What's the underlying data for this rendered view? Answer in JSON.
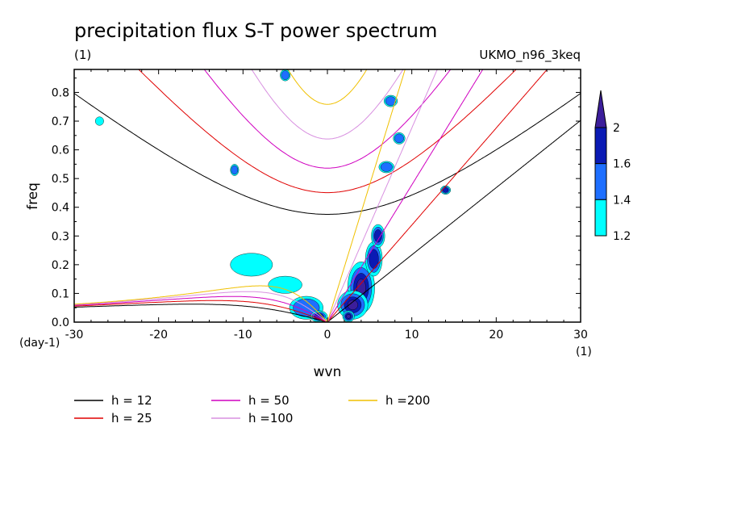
{
  "chart_data": {
    "type": "heatmap",
    "title": "precipitation flux S-T power spectrum",
    "subtitle_left": "(1)",
    "subtitle_right": "UKMO_n96_3keq",
    "xlabel": "wvn",
    "ylabel": "freq",
    "x_unit_label": "(1)",
    "y_unit_label": "(day-1)",
    "xlim": [
      -30,
      30
    ],
    "ylim": [
      0,
      0.88
    ],
    "x_ticks": [
      -30,
      -20,
      -10,
      0,
      10,
      20,
      30
    ],
    "x_tick_labels": [
      "-30",
      "-20",
      "-10",
      "0",
      "10",
      "20",
      "30"
    ],
    "y_ticks": [
      0,
      0.1,
      0.2,
      0.3,
      0.4,
      0.5,
      0.6,
      0.7,
      0.8
    ],
    "y_tick_labels": [
      "0.0",
      "0.1",
      "0.2",
      "0.3",
      "0.4",
      "0.5",
      "0.6",
      "0.7",
      "0.8"
    ],
    "grid": false,
    "colorbar": {
      "levels": [
        1.2,
        1.4,
        1.6,
        2
      ],
      "labels": [
        "1.2",
        "1.4",
        "1.6",
        "2"
      ],
      "colors": [
        "#00ffff",
        "#1e6fff",
        "#0a1ab4",
        "#3c1e9b"
      ]
    },
    "dispersion_curves": [
      {
        "name": "h = 12",
        "h": 12,
        "color": "#000000"
      },
      {
        "name": "h = 25",
        "h": 25,
        "color": "#e00000"
      },
      {
        "name": "h = 50",
        "h": 50,
        "color": "#d000c0"
      },
      {
        "name": "h =100",
        "h": 100,
        "color": "#d890e0"
      },
      {
        "name": "h =200",
        "h": 200,
        "color": "#f0c000"
      }
    ],
    "blobs": [
      {
        "x": 4,
        "y": 0.12,
        "rx": 1.6,
        "ry": 0.09,
        "level": 3
      },
      {
        "x": 3,
        "y": 0.06,
        "rx": 1.8,
        "ry": 0.05,
        "level": 3
      },
      {
        "x": 5.5,
        "y": 0.22,
        "rx": 1.0,
        "ry": 0.06,
        "level": 2
      },
      {
        "x": 6,
        "y": 0.3,
        "rx": 0.8,
        "ry": 0.04,
        "level": 2
      },
      {
        "x": -2.5,
        "y": 0.05,
        "rx": 2.0,
        "ry": 0.04,
        "level": 1
      },
      {
        "x": -9,
        "y": 0.2,
        "rx": 2.5,
        "ry": 0.04,
        "level": 0
      },
      {
        "x": -5,
        "y": 0.13,
        "rx": 2.0,
        "ry": 0.03,
        "level": 0
      },
      {
        "x": 14,
        "y": 0.46,
        "rx": 0.6,
        "ry": 0.015,
        "level": 2
      },
      {
        "x": -11,
        "y": 0.53,
        "rx": 0.5,
        "ry": 0.02,
        "level": 1
      },
      {
        "x": -1,
        "y": 0.02,
        "rx": 1.0,
        "ry": 0.02,
        "level": 2
      },
      {
        "x": 8.5,
        "y": 0.64,
        "rx": 0.7,
        "ry": 0.02,
        "level": 1
      },
      {
        "x": 7.5,
        "y": 0.77,
        "rx": 0.8,
        "ry": 0.02,
        "level": 1
      },
      {
        "x": -27,
        "y": 0.7,
        "rx": 0.5,
        "ry": 0.015,
        "level": 0
      },
      {
        "x": -5,
        "y": 0.86,
        "rx": 0.6,
        "ry": 0.02,
        "level": 1
      },
      {
        "x": 7,
        "y": 0.54,
        "rx": 0.9,
        "ry": 0.02,
        "level": 1
      },
      {
        "x": 2.5,
        "y": 0.02,
        "rx": 0.7,
        "ry": 0.02,
        "level": 3
      }
    ]
  },
  "legend": [
    {
      "label": "h = 12",
      "color": "#000000"
    },
    {
      "label": "h = 25",
      "color": "#e00000"
    },
    {
      "label": "h = 50",
      "color": "#d000c0"
    },
    {
      "label": "h =100",
      "color": "#d890e0"
    },
    {
      "label": "h =200",
      "color": "#f0c000"
    }
  ]
}
